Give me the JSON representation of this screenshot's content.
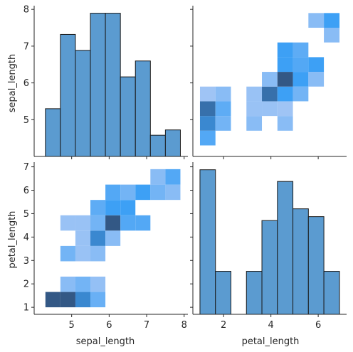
{
  "chart_data": {
    "type": "pairgrid",
    "variables": [
      "sepal_length",
      "petal_length"
    ],
    "x_labels": [
      "sepal_length",
      "petal_length"
    ],
    "y_labels": [
      "sepal_length",
      "petal_length"
    ],
    "colors": {
      "hist": "#5b9bd0",
      "edge": "#1a1a1a",
      "heat": "#3da0f5"
    },
    "axes": {
      "sepal_length": {
        "range": [
          4.0,
          8.1
        ],
        "ticks": [
          5,
          6,
          7,
          8
        ]
      },
      "petal_length": {
        "range": [
          0.7,
          7.2
        ],
        "ticks": [
          1,
          2,
          3,
          4,
          5,
          6,
          7
        ]
      },
      "petal_length_x": {
        "range": [
          0.7,
          7.2
        ],
        "ticks": [
          2,
          4,
          6
        ]
      }
    },
    "diag": [
      {
        "var": "sepal_length",
        "bin_edges": [
          4.3,
          4.7,
          5.1,
          5.5,
          5.9,
          6.3,
          6.7,
          7.1,
          7.5,
          7.9
        ],
        "counts": [
          9,
          23,
          20,
          27,
          27,
          15,
          18,
          4,
          5
        ]
      },
      {
        "var": "petal_length",
        "bin_edges": [
          1.0,
          1.655,
          2.31,
          2.965,
          3.62,
          4.275,
          4.93,
          5.585,
          6.24,
          6.9
        ],
        "counts": [
          37,
          11,
          0,
          11,
          24,
          34,
          27,
          25,
          11
        ]
      }
    ],
    "heatmaps": [
      {
        "x": "petal_length",
        "y": "sepal_length",
        "x_edges": [
          1.0,
          1.655,
          2.31,
          2.965,
          3.62,
          4.275,
          4.93,
          5.585,
          6.24,
          6.9
        ],
        "y_edges": [
          4.3,
          4.7,
          5.1,
          5.5,
          5.9,
          6.3,
          6.7,
          7.1,
          7.5,
          7.9
        ],
        "cells": [
          [
            0,
            0,
            0.7
          ],
          [
            0,
            1,
            0.85
          ],
          [
            0,
            2,
            0.9
          ],
          [
            0,
            3,
            0.35
          ],
          [
            1,
            1,
            0.55
          ],
          [
            1,
            2,
            0.65
          ],
          [
            1,
            3,
            0.45
          ],
          [
            3,
            1,
            0.45
          ],
          [
            3,
            2,
            0.38
          ],
          [
            3,
            3,
            0.38
          ],
          [
            4,
            2,
            0.38
          ],
          [
            4,
            3,
            0.9
          ],
          [
            4,
            4,
            0.45
          ],
          [
            5,
            1,
            0.45
          ],
          [
            5,
            2,
            0.35
          ],
          [
            5,
            3,
            0.8
          ],
          [
            5,
            4,
            0.95
          ],
          [
            5,
            5,
            0.8
          ],
          [
            5,
            6,
            0.8
          ],
          [
            6,
            3,
            0.55
          ],
          [
            6,
            4,
            0.8
          ],
          [
            6,
            5,
            0.7
          ],
          [
            6,
            6,
            0.65
          ],
          [
            7,
            4,
            0.45
          ],
          [
            7,
            5,
            0.8
          ],
          [
            7,
            8,
            0.45
          ],
          [
            8,
            7,
            0.45
          ],
          [
            8,
            8,
            0.8
          ]
        ]
      },
      {
        "x": "sepal_length",
        "y": "petal_length",
        "x_edges": [
          4.3,
          4.7,
          5.1,
          5.5,
          5.9,
          6.3,
          6.7,
          7.1,
          7.5,
          7.9
        ],
        "y_edges": [
          1.0,
          1.655,
          2.31,
          2.965,
          3.62,
          4.275,
          4.93,
          5.585,
          6.24,
          6.9
        ],
        "cells": [
          [
            0,
            0,
            0.95
          ],
          [
            1,
            0,
            0.95
          ],
          [
            2,
            0,
            0.85
          ],
          [
            3,
            0,
            0.6
          ],
          [
            1,
            1,
            0.45
          ],
          [
            2,
            1,
            0.55
          ],
          [
            3,
            1,
            0.4
          ],
          [
            1,
            3,
            0.55
          ],
          [
            2,
            3,
            0.38
          ],
          [
            3,
            3,
            0.45
          ],
          [
            2,
            4,
            0.38
          ],
          [
            3,
            4,
            0.85
          ],
          [
            4,
            4,
            0.45
          ],
          [
            1,
            5,
            0.38
          ],
          [
            2,
            5,
            0.38
          ],
          [
            3,
            5,
            0.55
          ],
          [
            4,
            5,
            0.95
          ],
          [
            5,
            5,
            0.7
          ],
          [
            6,
            5,
            0.7
          ],
          [
            3,
            6,
            0.65
          ],
          [
            4,
            6,
            0.8
          ],
          [
            5,
            6,
            0.8
          ],
          [
            4,
            7,
            0.7
          ],
          [
            5,
            7,
            0.55
          ],
          [
            6,
            7,
            0.8
          ],
          [
            7,
            7,
            0.55
          ],
          [
            8,
            7,
            0.45
          ],
          [
            7,
            8,
            0.45
          ],
          [
            8,
            8,
            0.7
          ]
        ]
      }
    ]
  }
}
